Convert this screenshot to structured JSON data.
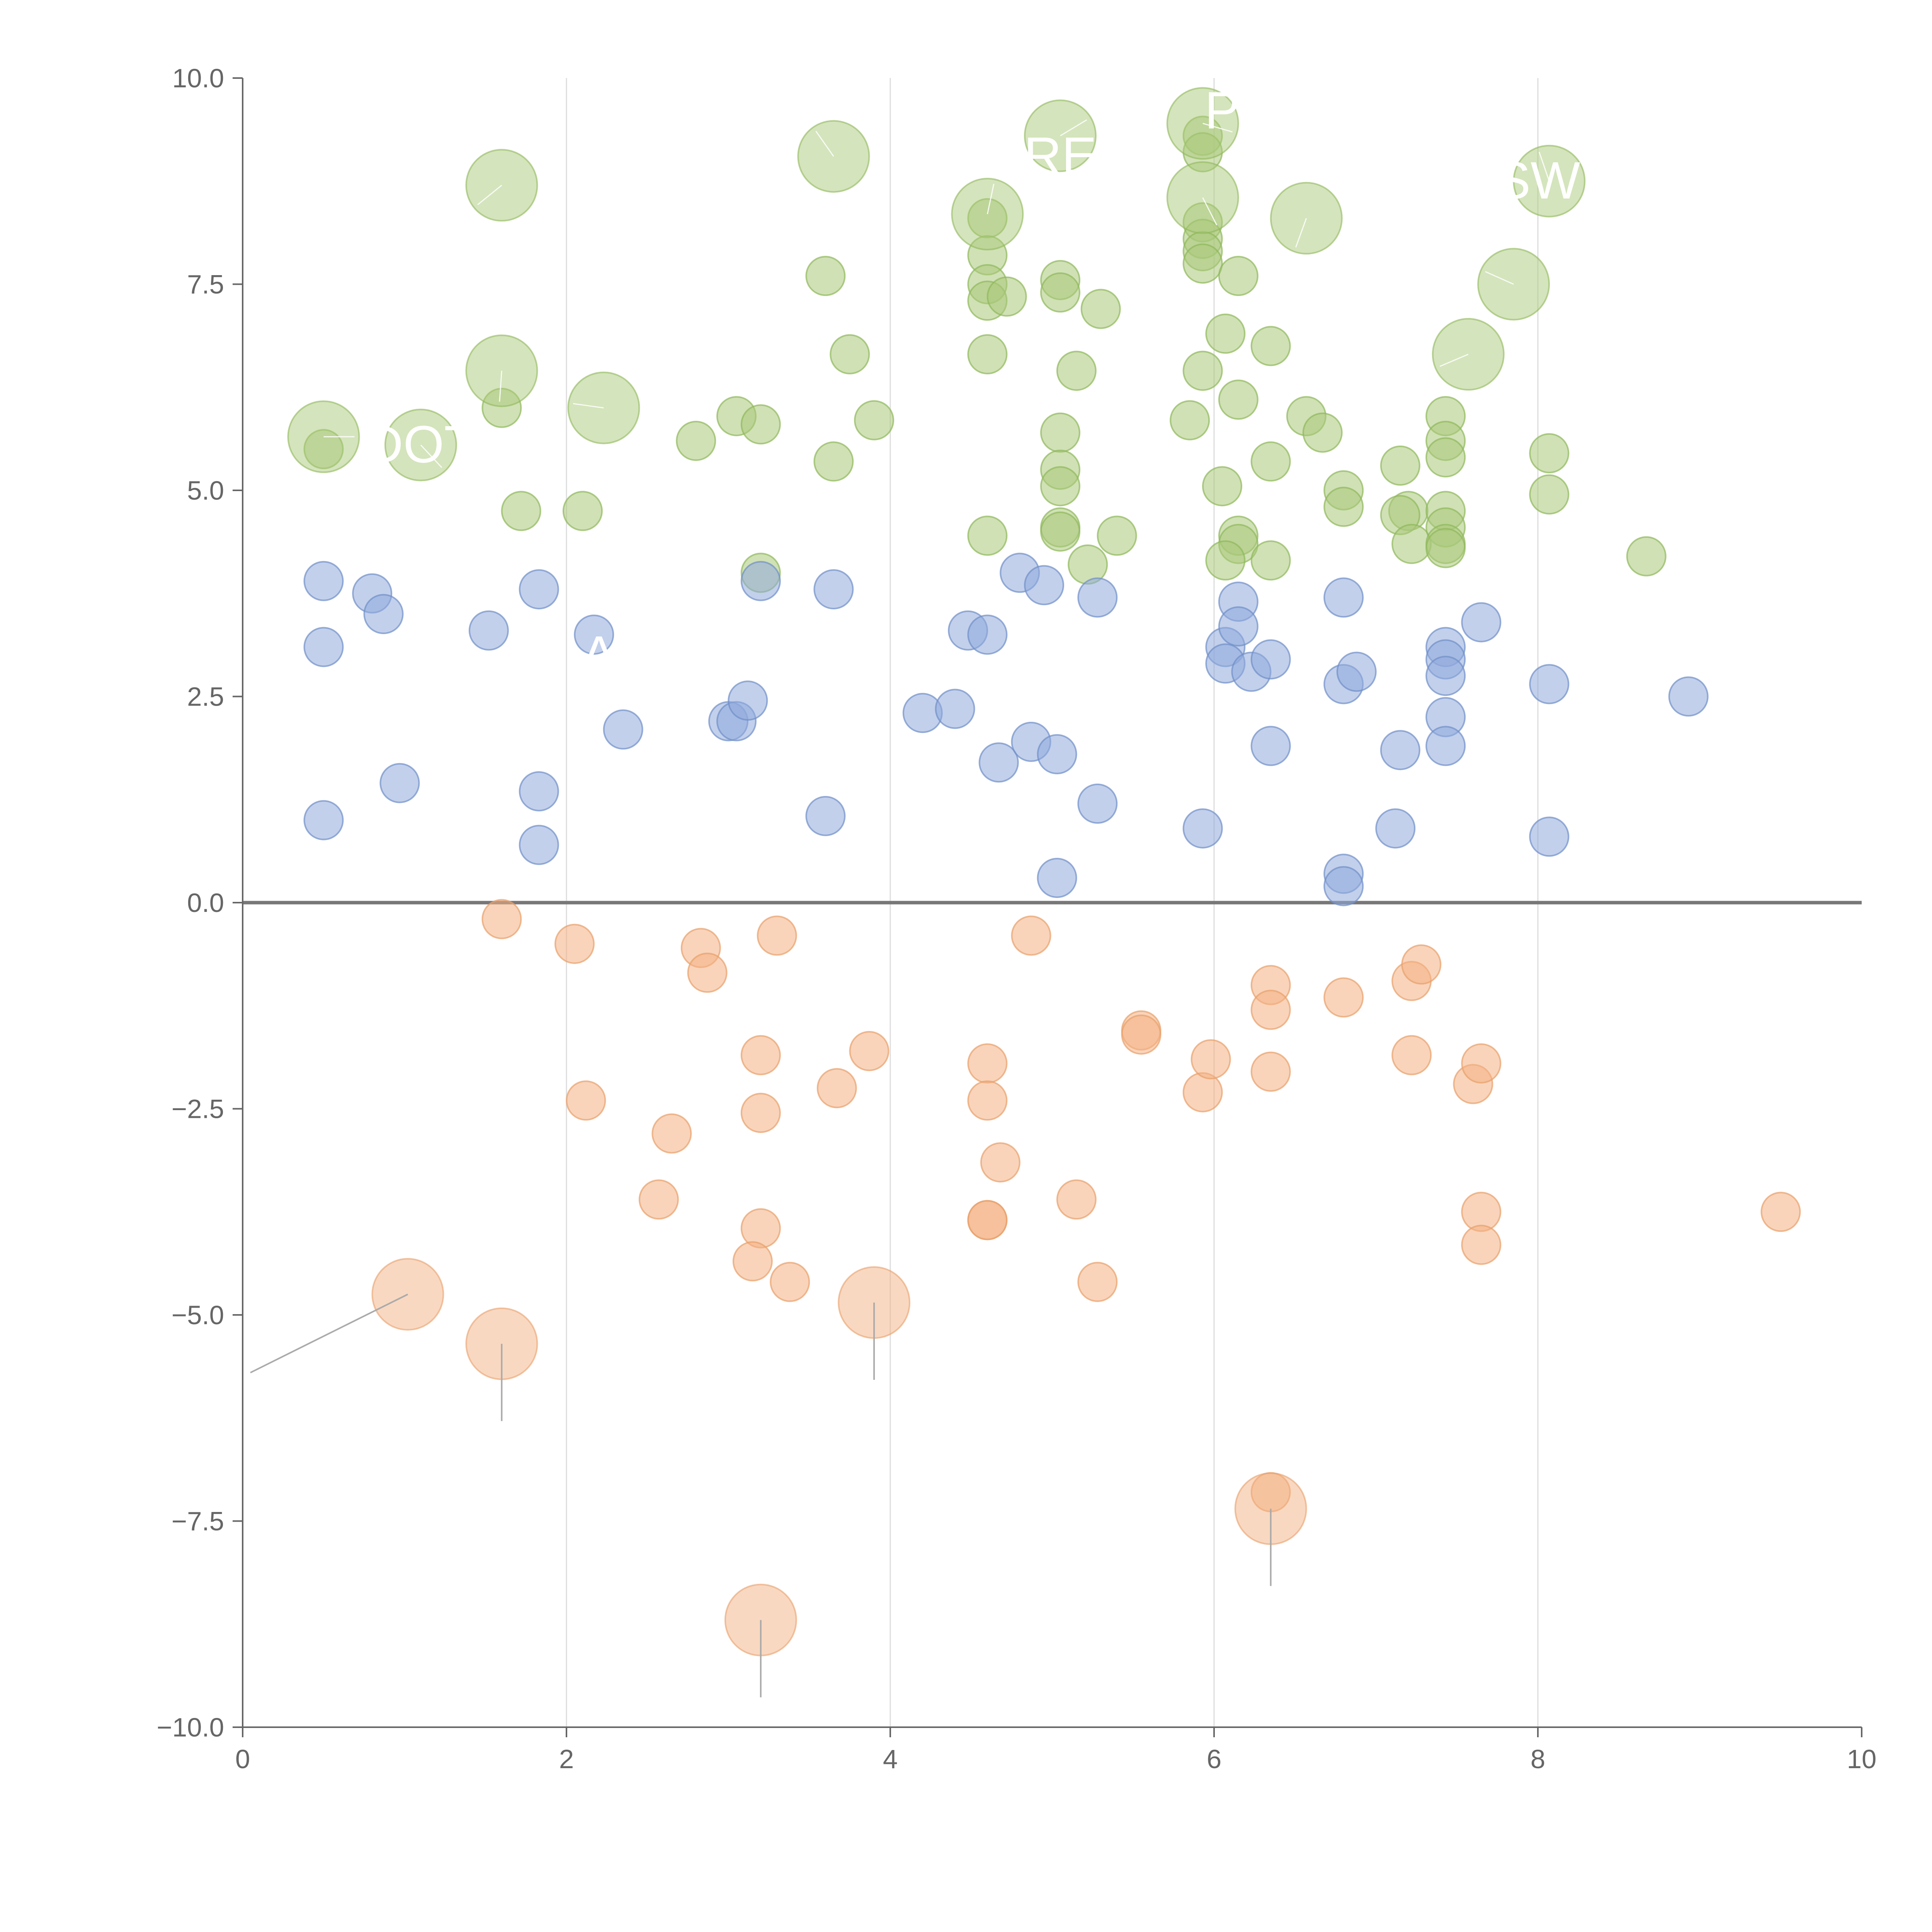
{
  "chart_data": {
    "type": "scatter",
    "title": "",
    "xlabel": "",
    "ylabel": "",
    "xlim": [
      0,
      10
    ],
    "ylim": [
      -10,
      10
    ],
    "xticks": [
      0,
      2,
      4,
      6,
      8,
      10
    ],
    "yticks": [
      10,
      7.5,
      5,
      2.5,
      0,
      -2.5,
      -5,
      -7.5,
      -10
    ],
    "xtick_labels": [
      "0",
      "2",
      "4",
      "6",
      "8",
      "10"
    ],
    "ytick_labels": [
      "10.0",
      "7.5",
      "5.0",
      "2.5",
      "0.0",
      "−2.5",
      "−5.0",
      "−7.5",
      "−10.0"
    ],
    "vertical_grid": [
      2,
      4,
      6,
      8
    ],
    "reference_line_y": 0,
    "series": [
      {
        "name": "green",
        "color": "#a9c97a",
        "stroke": "#8fb85a",
        "points": [
          [
            0.5,
            5.5
          ],
          [
            1.72,
            4.75
          ],
          [
            2.1,
            4.75
          ],
          [
            1.6,
            6.0
          ],
          [
            2.8,
            5.6
          ],
          [
            3.05,
            5.9
          ],
          [
            3.2,
            5.8
          ],
          [
            3.2,
            4.0
          ],
          [
            3.65,
            5.35
          ],
          [
            3.75,
            6.65
          ],
          [
            3.9,
            5.85
          ],
          [
            3.6,
            7.6
          ],
          [
            4.6,
            8.3
          ],
          [
            4.6,
            7.85
          ],
          [
            4.6,
            7.5
          ],
          [
            4.6,
            7.3
          ],
          [
            4.72,
            7.35
          ],
          [
            4.6,
            6.65
          ],
          [
            4.6,
            4.45
          ],
          [
            5.05,
            7.55
          ],
          [
            5.05,
            7.4
          ],
          [
            5.3,
            7.2
          ],
          [
            5.15,
            6.45
          ],
          [
            5.05,
            5.7
          ],
          [
            5.05,
            5.25
          ],
          [
            5.05,
            5.05
          ],
          [
            5.05,
            4.55
          ],
          [
            5.05,
            4.5
          ],
          [
            5.22,
            4.1
          ],
          [
            5.4,
            4.45
          ],
          [
            5.93,
            9.3
          ],
          [
            5.93,
            9.1
          ],
          [
            5.93,
            8.25
          ],
          [
            5.93,
            8.05
          ],
          [
            5.93,
            7.9
          ],
          [
            5.93,
            7.75
          ],
          [
            6.15,
            7.6
          ],
          [
            6.07,
            6.9
          ],
          [
            5.93,
            6.45
          ],
          [
            6.15,
            6.1
          ],
          [
            5.85,
            5.85
          ],
          [
            6.05,
            5.05
          ],
          [
            6.15,
            4.45
          ],
          [
            6.15,
            4.35
          ],
          [
            6.07,
            4.15
          ],
          [
            6.35,
            6.75
          ],
          [
            6.35,
            5.35
          ],
          [
            6.35,
            4.15
          ],
          [
            6.57,
            5.9
          ],
          [
            6.67,
            5.7
          ],
          [
            6.8,
            5.0
          ],
          [
            6.8,
            4.8
          ],
          [
            7.15,
            5.3
          ],
          [
            7.2,
            4.75
          ],
          [
            7.15,
            4.7
          ],
          [
            7.22,
            4.35
          ],
          [
            7.43,
            5.9
          ],
          [
            7.43,
            5.6
          ],
          [
            7.43,
            5.4
          ],
          [
            7.43,
            4.75
          ],
          [
            7.43,
            4.55
          ],
          [
            7.43,
            4.35
          ],
          [
            7.43,
            4.3
          ],
          [
            8.07,
            5.45
          ],
          [
            8.07,
            4.95
          ],
          [
            8.67,
            4.2
          ]
        ],
        "highlighted": [
          [
            0.5,
            5.65
          ],
          [
            1.1,
            5.55
          ],
          [
            1.6,
            6.45
          ],
          [
            1.6,
            8.7
          ],
          [
            2.23,
            6.0
          ],
          [
            3.65,
            9.05
          ],
          [
            4.6,
            8.35
          ],
          [
            5.05,
            9.3
          ],
          [
            5.93,
            9.45
          ],
          [
            5.93,
            8.55
          ],
          [
            6.57,
            8.3
          ],
          [
            7.57,
            6.65
          ],
          [
            7.85,
            7.5
          ],
          [
            8.07,
            8.75
          ]
        ]
      },
      {
        "name": "blue",
        "color": "#8faadc",
        "stroke": "#6f8fc8",
        "points": [
          [
            0.5,
            3.9
          ],
          [
            0.5,
            3.1
          ],
          [
            0.8,
            3.75
          ],
          [
            0.87,
            3.5
          ],
          [
            0.5,
            1.0
          ],
          [
            0.97,
            1.45
          ],
          [
            1.52,
            3.3
          ],
          [
            1.83,
            3.8
          ],
          [
            1.83,
            1.35
          ],
          [
            1.83,
            0.7
          ],
          [
            2.17,
            3.25
          ],
          [
            2.35,
            2.1
          ],
          [
            3.0,
            2.2
          ],
          [
            3.05,
            2.2
          ],
          [
            3.12,
            2.45
          ],
          [
            3.2,
            3.9
          ],
          [
            3.65,
            3.8
          ],
          [
            3.6,
            1.05
          ],
          [
            4.2,
            2.3
          ],
          [
            4.4,
            2.35
          ],
          [
            4.48,
            3.3
          ],
          [
            4.6,
            3.25
          ],
          [
            4.8,
            4.0
          ],
          [
            4.95,
            3.85
          ],
          [
            4.67,
            1.7
          ],
          [
            4.87,
            1.95
          ],
          [
            5.03,
            1.8
          ],
          [
            5.03,
            0.3
          ],
          [
            5.28,
            3.7
          ],
          [
            5.28,
            1.2
          ],
          [
            5.93,
            0.9
          ],
          [
            6.07,
            3.1
          ],
          [
            6.07,
            2.9
          ],
          [
            6.15,
            3.65
          ],
          [
            6.15,
            3.35
          ],
          [
            6.23,
            2.8
          ],
          [
            6.35,
            2.95
          ],
          [
            6.35,
            1.9
          ],
          [
            6.8,
            3.7
          ],
          [
            6.8,
            2.65
          ],
          [
            6.88,
            2.8
          ],
          [
            6.8,
            0.35
          ],
          [
            6.8,
            0.2
          ],
          [
            7.12,
            0.9
          ],
          [
            7.15,
            1.85
          ],
          [
            7.43,
            3.1
          ],
          [
            7.43,
            2.95
          ],
          [
            7.43,
            2.75
          ],
          [
            7.43,
            2.25
          ],
          [
            7.43,
            1.9
          ],
          [
            7.65,
            3.4
          ],
          [
            8.07,
            2.65
          ],
          [
            8.07,
            0.8
          ],
          [
            8.93,
            2.5
          ]
        ],
        "highlighted": []
      },
      {
        "name": "orange",
        "color": "#f4b183",
        "stroke": "#e8a06a",
        "points": [
          [
            1.6,
            -0.2
          ],
          [
            2.05,
            -0.5
          ],
          [
            2.83,
            -0.55
          ],
          [
            2.87,
            -0.85
          ],
          [
            3.3,
            -0.4
          ],
          [
            4.87,
            -0.4
          ],
          [
            2.12,
            -2.4
          ],
          [
            2.65,
            -2.8
          ],
          [
            2.57,
            -3.6
          ],
          [
            3.2,
            -1.85
          ],
          [
            3.2,
            -2.55
          ],
          [
            3.2,
            -3.95
          ],
          [
            3.15,
            -4.35
          ],
          [
            3.38,
            -4.6
          ],
          [
            3.67,
            -2.25
          ],
          [
            3.87,
            -1.8
          ],
          [
            4.6,
            -1.95
          ],
          [
            4.6,
            -2.4
          ],
          [
            4.68,
            -3.15
          ],
          [
            4.6,
            -3.85
          ],
          [
            4.6,
            -3.85
          ],
          [
            5.15,
            -3.6
          ],
          [
            5.28,
            -4.6
          ],
          [
            5.55,
            -1.55
          ],
          [
            5.55,
            -1.6
          ],
          [
            5.93,
            -2.3
          ],
          [
            5.98,
            -1.9
          ],
          [
            6.35,
            -1.0
          ],
          [
            6.35,
            -1.3
          ],
          [
            6.35,
            -2.05
          ],
          [
            6.8,
            -1.15
          ],
          [
            7.22,
            -0.95
          ],
          [
            7.28,
            -0.75
          ],
          [
            7.22,
            -1.85
          ],
          [
            7.6,
            -2.2
          ],
          [
            7.65,
            -1.95
          ],
          [
            7.65,
            -3.75
          ],
          [
            7.65,
            -4.15
          ],
          [
            9.5,
            -3.75
          ],
          [
            6.35,
            -7.15
          ]
        ],
        "highlighted": [
          [
            1.02,
            -4.75
          ],
          [
            1.6,
            -5.35
          ],
          [
            3.9,
            -4.85
          ],
          [
            6.35,
            -7.35
          ],
          [
            3.2,
            -8.7
          ]
        ]
      }
    ],
    "annotations": [
      {
        "text": "DOT",
        "x": 1.1,
        "y": 5.55
      },
      {
        "text": "RE",
        "x": 5.05,
        "y": 9.05
      },
      {
        "text": "P",
        "x": 6.05,
        "y": 9.6
      },
      {
        "text": "SW",
        "x": 8.0,
        "y": 8.75
      },
      {
        "text": "A",
        "x": 2.2,
        "y": 3.0
      }
    ]
  }
}
